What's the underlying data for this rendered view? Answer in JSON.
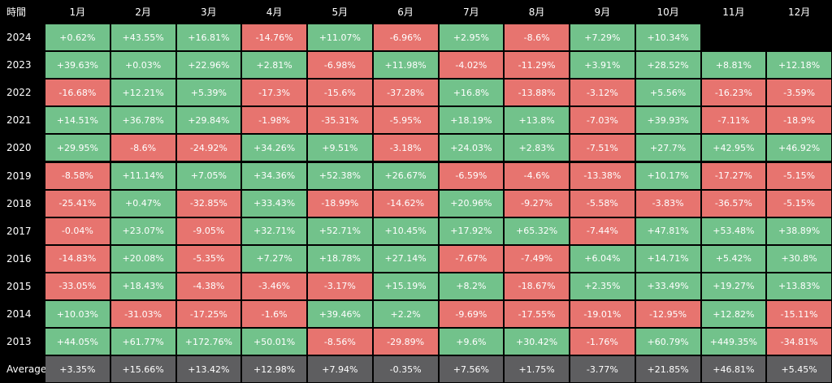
{
  "colors": {
    "positive": "#72c28b",
    "negative": "#e7746f",
    "average": "#5e5e60",
    "background": "#000000",
    "text": "#ffffff"
  },
  "chart_data": {
    "type": "heatmap",
    "corner_label": "時間",
    "columns": [
      "1月",
      "2月",
      "3月",
      "4月",
      "5月",
      "6月",
      "7月",
      "8月",
      "9月",
      "10月",
      "11月",
      "12月"
    ],
    "rows": [
      {
        "label": "2024",
        "values": [
          "+0.62%",
          "+43.55%",
          "+16.81%",
          "-14.76%",
          "+11.07%",
          "-6.96%",
          "+2.95%",
          "-8.6%",
          "+7.29%",
          "+10.34%",
          null,
          null
        ]
      },
      {
        "label": "2023",
        "values": [
          "+39.63%",
          "+0.03%",
          "+22.96%",
          "+2.81%",
          "-6.98%",
          "+11.98%",
          "-4.02%",
          "-11.29%",
          "+3.91%",
          "+28.52%",
          "+8.81%",
          "+12.18%"
        ]
      },
      {
        "label": "2022",
        "values": [
          "-16.68%",
          "+12.21%",
          "+5.39%",
          "-17.3%",
          "-15.6%",
          "-37.28%",
          "+16.8%",
          "-13.88%",
          "-3.12%",
          "+5.56%",
          "-16.23%",
          "-3.59%"
        ]
      },
      {
        "label": "2021",
        "values": [
          "+14.51%",
          "+36.78%",
          "+29.84%",
          "-1.98%",
          "-35.31%",
          "-5.95%",
          "+18.19%",
          "+13.8%",
          "-7.03%",
          "+39.93%",
          "-7.11%",
          "-18.9%"
        ]
      },
      {
        "label": "2020",
        "values": [
          "+29.95%",
          "-8.6%",
          "-24.92%",
          "+34.26%",
          "+9.51%",
          "-3.18%",
          "+24.03%",
          "+2.83%",
          "-7.51%",
          "+27.7%",
          "+42.95%",
          "+46.92%"
        ]
      },
      {
        "label": "2019",
        "values": [
          "-8.58%",
          "+11.14%",
          "+7.05%",
          "+34.36%",
          "+52.38%",
          "+26.67%",
          "-6.59%",
          "-4.6%",
          "-13.38%",
          "+10.17%",
          "-17.27%",
          "-5.15%"
        ]
      },
      {
        "label": "2018",
        "values": [
          "-25.41%",
          "+0.47%",
          "-32.85%",
          "+33.43%",
          "-18.99%",
          "-14.62%",
          "+20.96%",
          "-9.27%",
          "-5.58%",
          "-3.83%",
          "-36.57%",
          "-5.15%"
        ]
      },
      {
        "label": "2017",
        "values": [
          "-0.04%",
          "+23.07%",
          "-9.05%",
          "+32.71%",
          "+52.71%",
          "+10.45%",
          "+17.92%",
          "+65.32%",
          "-7.44%",
          "+47.81%",
          "+53.48%",
          "+38.89%"
        ]
      },
      {
        "label": "2016",
        "values": [
          "-14.83%",
          "+20.08%",
          "-5.35%",
          "+7.27%",
          "+18.78%",
          "+27.14%",
          "-7.67%",
          "-7.49%",
          "+6.04%",
          "+14.71%",
          "+5.42%",
          "+30.8%"
        ]
      },
      {
        "label": "2015",
        "values": [
          "-33.05%",
          "+18.43%",
          "-4.38%",
          "-3.46%",
          "-3.17%",
          "+15.19%",
          "+8.2%",
          "-18.67%",
          "+2.35%",
          "+33.49%",
          "+19.27%",
          "+13.83%"
        ]
      },
      {
        "label": "2014",
        "values": [
          "+10.03%",
          "-31.03%",
          "-17.25%",
          "-1.6%",
          "+39.46%",
          "+2.2%",
          "-9.69%",
          "-17.55%",
          "-19.01%",
          "-12.95%",
          "+12.82%",
          "-15.11%"
        ]
      },
      {
        "label": "2013",
        "values": [
          "+44.05%",
          "+61.77%",
          "+172.76%",
          "+50.01%",
          "-8.56%",
          "-29.89%",
          "+9.6%",
          "+30.42%",
          "-1.76%",
          "+60.79%",
          "+449.35%",
          "-34.81%"
        ]
      }
    ],
    "average": {
      "label": "Average",
      "values": [
        "+3.35%",
        "+15.66%",
        "+13.42%",
        "+12.98%",
        "+7.94%",
        "-0.35%",
        "+7.56%",
        "+1.75%",
        "-3.77%",
        "+21.85%",
        "+46.81%",
        "+5.45%"
      ]
    }
  }
}
